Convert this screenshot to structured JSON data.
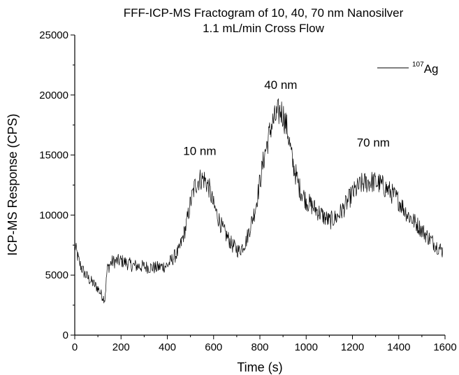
{
  "chart_data": {
    "type": "line",
    "title": [
      "FFF-ICP-MS Fractogram of 10, 40, 70 nm Nanosilver",
      "1.1 mL/min Cross Flow"
    ],
    "xlabel": "Time (s)",
    "ylabel": "ICP-MS Response (CPS)",
    "xlim": [
      0,
      1600
    ],
    "ylim": [
      0,
      25000
    ],
    "x_ticks": [
      0,
      200,
      400,
      600,
      800,
      1000,
      1200,
      1400,
      1600
    ],
    "y_ticks": [
      0,
      5000,
      10000,
      15000,
      20000,
      25000
    ],
    "grid": false,
    "legend_position": "top-right",
    "legend": {
      "superscript": "107",
      "label": "Ag"
    },
    "annotations": [
      {
        "text": "10 nm",
        "x": 540,
        "y": 15000
      },
      {
        "text": "40 nm",
        "x": 890,
        "y": 20500
      },
      {
        "text": "70 nm",
        "x": 1290,
        "y": 15700
      }
    ],
    "series": [
      {
        "color": "#000000",
        "x": [
          0,
          20,
          40,
          60,
          80,
          100,
          120,
          130,
          140,
          160,
          200,
          250,
          300,
          350,
          400,
          450,
          480,
          500,
          520,
          540,
          560,
          580,
          600,
          640,
          680,
          710,
          740,
          780,
          820,
          850,
          870,
          880,
          890,
          900,
          920,
          940,
          970,
          1000,
          1040,
          1080,
          1100,
          1130,
          1160,
          1200,
          1240,
          1280,
          1320,
          1360,
          1400,
          1440,
          1480,
          1520,
          1560,
          1590
        ],
        "y": [
          7500,
          6000,
          5200,
          4700,
          4300,
          3900,
          3200,
          3000,
          5500,
          6100,
          6200,
          5800,
          5700,
          5600,
          5800,
          7000,
          9000,
          11000,
          12500,
          13000,
          13000,
          12300,
          10800,
          8800,
          7500,
          7000,
          7800,
          10500,
          15000,
          17500,
          18200,
          18500,
          18700,
          18400,
          17000,
          14500,
          12300,
          11200,
          10500,
          9800,
          9500,
          9800,
          10500,
          11800,
          12600,
          12800,
          12600,
          12000,
          11200,
          10000,
          9200,
          8300,
          7500,
          7000
        ]
      }
    ]
  }
}
